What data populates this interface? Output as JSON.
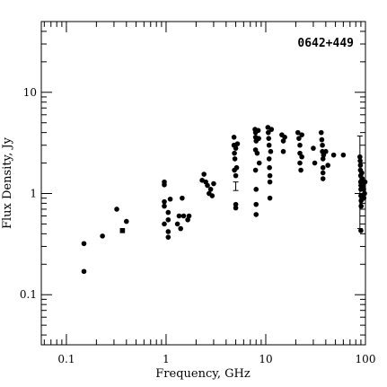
{
  "chart_data": {
    "type": "scatter",
    "title": "0642+449",
    "xlabel": "Frequency, GHz",
    "ylabel": "Flux Density, Jy",
    "xscale": "log",
    "yscale": "log",
    "xlim": [
      0.056,
      100
    ],
    "ylim": [
      0.032,
      50
    ],
    "x_ticks": [
      {
        "value": 0.1,
        "label": "0.1"
      },
      {
        "value": 1,
        "label": "1"
      },
      {
        "value": 10,
        "label": "10"
      },
      {
        "value": 100,
        "label": "100"
      }
    ],
    "y_ticks": [
      {
        "value": 0.1,
        "label": "0.1"
      },
      {
        "value": 1,
        "label": "1"
      },
      {
        "value": 10,
        "label": "10"
      }
    ],
    "grid": false,
    "legend": "none",
    "series": [
      {
        "marker": "circle",
        "points": [
          [
            0.15,
            0.32
          ],
          [
            0.15,
            0.17
          ],
          [
            0.23,
            0.38
          ],
          [
            0.32,
            0.7
          ],
          [
            0.4,
            0.53
          ],
          [
            0.96,
            1.3
          ],
          [
            0.96,
            1.22
          ],
          [
            0.96,
            0.83
          ],
          [
            0.96,
            0.75
          ],
          [
            0.96,
            0.5
          ],
          [
            1.05,
            0.65
          ],
          [
            1.05,
            0.55
          ],
          [
            1.05,
            0.42
          ],
          [
            1.05,
            0.37
          ],
          [
            1.1,
            0.88
          ],
          [
            1.3,
            0.5
          ],
          [
            1.35,
            0.6
          ],
          [
            1.4,
            0.45
          ],
          [
            1.45,
            0.9
          ],
          [
            1.5,
            0.6
          ],
          [
            1.65,
            0.55
          ],
          [
            1.7,
            0.6
          ],
          [
            2.3,
            1.35
          ],
          [
            2.4,
            1.55
          ],
          [
            2.5,
            1.3
          ],
          [
            2.6,
            1.2
          ],
          [
            2.7,
            1.0
          ],
          [
            2.8,
            1.1
          ],
          [
            2.9,
            0.95
          ],
          [
            3.0,
            1.25
          ],
          [
            4.8,
            3.6
          ],
          [
            4.8,
            3.0
          ],
          [
            4.85,
            2.5
          ],
          [
            4.85,
            1.7
          ],
          [
            4.9,
            2.2
          ],
          [
            5.0,
            2.8
          ],
          [
            5.0,
            1.5
          ],
          [
            5.0,
            0.78
          ],
          [
            5.0,
            0.72
          ],
          [
            5.1,
            1.8
          ],
          [
            5.2,
            3.1
          ],
          [
            7.8,
            4.3
          ],
          [
            7.9,
            4.0
          ],
          [
            7.9,
            3.6
          ],
          [
            7.9,
            2.7
          ],
          [
            7.9,
            1.7
          ],
          [
            8.0,
            3.3
          ],
          [
            8.0,
            1.1
          ],
          [
            8.0,
            0.78
          ],
          [
            8.0,
            0.62
          ],
          [
            8.2,
            2.5
          ],
          [
            8.4,
            4.2
          ],
          [
            8.5,
            3.5
          ],
          [
            8.6,
            2.0
          ],
          [
            10.5,
            4.5
          ],
          [
            10.6,
            4.0
          ],
          [
            10.7,
            3.5
          ],
          [
            10.8,
            3.0
          ],
          [
            10.8,
            2.2
          ],
          [
            10.9,
            1.8
          ],
          [
            11.0,
            1.5
          ],
          [
            11.0,
            1.3
          ],
          [
            11.0,
            0.9
          ],
          [
            11.2,
            2.6
          ],
          [
            11.4,
            4.3
          ],
          [
            14.5,
            3.8
          ],
          [
            15.0,
            3.3
          ],
          [
            15.0,
            2.6
          ],
          [
            15.5,
            3.6
          ],
          [
            21.0,
            4.0
          ],
          [
            21.5,
            3.5
          ],
          [
            22.0,
            3.0
          ],
          [
            22.0,
            2.5
          ],
          [
            22.0,
            2.0
          ],
          [
            22.5,
            1.7
          ],
          [
            23.0,
            3.8
          ],
          [
            23.0,
            2.3
          ],
          [
            30.0,
            2.8
          ],
          [
            31.0,
            2.0
          ],
          [
            36.0,
            4.0
          ],
          [
            36.5,
            3.4
          ],
          [
            37.0,
            3.0
          ],
          [
            37.0,
            2.6
          ],
          [
            37.5,
            2.2
          ],
          [
            37.5,
            1.8
          ],
          [
            37.5,
            1.6
          ],
          [
            37.5,
            1.4
          ],
          [
            38.0,
            2.4
          ],
          [
            40.0,
            2.6
          ],
          [
            42.0,
            1.9
          ],
          [
            48.0,
            2.4
          ],
          [
            60.0,
            2.4
          ],
          [
            88.0,
            2.3
          ],
          [
            88.5,
            2.1
          ],
          [
            89.0,
            1.9
          ],
          [
            89.0,
            1.7
          ],
          [
            89.5,
            1.5
          ],
          [
            89.5,
            1.3
          ],
          [
            90.0,
            1.2
          ],
          [
            90.0,
            1.1
          ],
          [
            90.0,
            0.95
          ],
          [
            90.5,
            0.85
          ],
          [
            90.5,
            0.75
          ],
          [
            90.0,
            0.43
          ],
          [
            92.0,
            1.6
          ],
          [
            93.0,
            1.4
          ],
          [
            94.0,
            1.3
          ],
          [
            95.0,
            1.2
          ],
          [
            96.0,
            1.1
          ],
          [
            97.0,
            1.3
          ],
          [
            98.0,
            1.0
          ],
          [
            99.0,
            1.3
          ],
          [
            96.5,
            0.9
          ]
        ]
      },
      {
        "marker": "square",
        "points": [
          [
            0.365,
            0.43
          ]
        ]
      }
    ],
    "error_bars": [
      {
        "x": 5.0,
        "y": 1.18,
        "low": 1.07,
        "high": 1.3
      },
      {
        "x": 88.0,
        "y": 1.7,
        "low": 0.45,
        "high": 3.7
      }
    ]
  }
}
